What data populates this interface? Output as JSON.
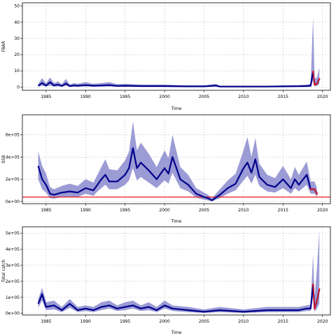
{
  "chart_data": [
    {
      "type": "line",
      "title": "",
      "xlabel": "Time",
      "ylabel": "FBAR",
      "xlim": [
        1982,
        2021
      ],
      "ylim": [
        -2,
        52
      ],
      "grid": true,
      "x_ticks": [
        1985,
        1990,
        1995,
        2000,
        2005,
        2010,
        2015,
        2020
      ],
      "y_ticks": [
        {
          "v": 0,
          "label": "0"
        },
        {
          "v": 10,
          "label": "10"
        },
        {
          "v": 20,
          "label": "20"
        },
        {
          "v": 30,
          "label": "30"
        },
        {
          "v": 40,
          "label": "40"
        },
        {
          "v": 50,
          "label": "50"
        }
      ],
      "colors": {
        "line": "#00008b",
        "band": "#9b9bd6",
        "highlight": "#e31a1c"
      },
      "x": [
        1984.0,
        1984.5,
        1985.0,
        1985.5,
        1986.0,
        1986.5,
        1987.0,
        1987.5,
        1988.0,
        1988.5,
        1989.0,
        1990.0,
        1991.0,
        1992.0,
        1993.0,
        1994.0,
        1995.0,
        1997.0,
        2000.0,
        2003.0,
        2005.0,
        2006.5,
        2007.0,
        2010.0,
        2013.0,
        2015.0,
        2017.0,
        2018.0,
        2018.5,
        2018.8,
        2019.0,
        2019.3,
        2019.6
      ],
      "series": [
        {
          "role": "median",
          "values": [
            0.8,
            2.5,
            0.9,
            3.0,
            1.0,
            1.5,
            0.7,
            2.2,
            0.6,
            1.0,
            0.8,
            1.2,
            0.8,
            1.0,
            1.2,
            0.7,
            0.8,
            0.6,
            0.6,
            0.4,
            0.4,
            0.9,
            0.3,
            0.3,
            0.3,
            0.4,
            0.5,
            0.6,
            0.8,
            9.5,
            1.5,
            2.0,
            5.0
          ]
        },
        {
          "role": "lower",
          "values": [
            0.2,
            0.8,
            0.3,
            0.9,
            0.3,
            0.5,
            0.2,
            0.7,
            0.2,
            0.3,
            0.2,
            0.4,
            0.2,
            0.3,
            0.4,
            0.2,
            0.2,
            0.2,
            0.2,
            0.1,
            0.1,
            0.3,
            0.1,
            0.1,
            0.1,
            0.1,
            0.2,
            0.2,
            0.3,
            4.0,
            0.5,
            0.7,
            2.0
          ]
        },
        {
          "role": "upper",
          "values": [
            2.0,
            5.5,
            2.2,
            6.0,
            2.5,
            3.5,
            1.8,
            5.0,
            1.5,
            2.5,
            2.0,
            3.0,
            2.0,
            2.5,
            3.0,
            1.8,
            2.0,
            1.5,
            1.5,
            1.0,
            1.0,
            2.0,
            0.8,
            0.8,
            0.8,
            1.0,
            1.2,
            1.5,
            2.0,
            43.0,
            5.0,
            6.0,
            12.0
          ]
        },
        {
          "role": "forecast",
          "x": [
            2018.8,
            2019.0,
            2019.3,
            2019.6
          ],
          "values": [
            9.5,
            1.5,
            2.0,
            5.0
          ]
        }
      ]
    },
    {
      "type": "line",
      "title": "",
      "xlabel": "Time",
      "ylabel": "SSB",
      "xlim": [
        1982,
        2021
      ],
      "ylim": [
        -20000,
        780000
      ],
      "grid": true,
      "reference_line": 40000,
      "x_ticks": [
        1985,
        1990,
        1995,
        2000,
        2005,
        2010,
        2015,
        2020
      ],
      "y_ticks": [
        {
          "v": 0,
          "label": "0e+00"
        },
        {
          "v": 200000,
          "label": "2e+05"
        },
        {
          "v": 400000,
          "label": "4e+05"
        },
        {
          "v": 600000,
          "label": "6e+05"
        }
      ],
      "colors": {
        "line": "#00008b",
        "band": "#9b9bd6",
        "reference": "#e31a1c"
      },
      "x": [
        1984.0,
        1984.5,
        1985.0,
        1985.5,
        1986.0,
        1987.0,
        1988.0,
        1989.0,
        1990.0,
        1991.0,
        1991.5,
        1992.0,
        1992.5,
        1993.0,
        1994.0,
        1995.0,
        1995.5,
        1996.0,
        1996.5,
        1997.0,
        1998.0,
        1999.0,
        2000.0,
        2000.5,
        2001.0,
        2002.0,
        2003.0,
        2004.0,
        2005.0,
        2005.5,
        2006.0,
        2007.0,
        2008.0,
        2009.0,
        2010.0,
        2010.5,
        2011.0,
        2011.5,
        2012.0,
        2013.0,
        2014.0,
        2015.0,
        2016.0,
        2016.5,
        2017.0,
        2018.0,
        2018.5,
        2019.0,
        2019.3
      ],
      "series": [
        {
          "role": "median",
          "values": [
            320000,
            200000,
            150000,
            70000,
            60000,
            80000,
            90000,
            80000,
            120000,
            100000,
            150000,
            200000,
            240000,
            180000,
            180000,
            240000,
            300000,
            480000,
            300000,
            350000,
            280000,
            200000,
            300000,
            250000,
            400000,
            200000,
            150000,
            70000,
            40000,
            30000,
            10000,
            60000,
            120000,
            160000,
            300000,
            350000,
            260000,
            380000,
            220000,
            150000,
            130000,
            200000,
            120000,
            200000,
            150000,
            240000,
            110000,
            110000,
            70000
          ]
        },
        {
          "role": "lower",
          "values": [
            200000,
            110000,
            80000,
            30000,
            25000,
            40000,
            45000,
            40000,
            70000,
            50000,
            90000,
            120000,
            150000,
            110000,
            110000,
            150000,
            190000,
            300000,
            190000,
            220000,
            170000,
            120000,
            190000,
            160000,
            260000,
            120000,
            90000,
            35000,
            15000,
            10000,
            2000,
            30000,
            70000,
            100000,
            190000,
            230000,
            160000,
            240000,
            140000,
            90000,
            80000,
            120000,
            70000,
            120000,
            90000,
            150000,
            70000,
            70000,
            40000
          ]
        },
        {
          "role": "upper",
          "values": [
            450000,
            320000,
            250000,
            130000,
            110000,
            140000,
            160000,
            140000,
            200000,
            170000,
            240000,
            310000,
            380000,
            290000,
            280000,
            370000,
            450000,
            720000,
            460000,
            530000,
            430000,
            310000,
            460000,
            390000,
            600000,
            310000,
            240000,
            120000,
            80000,
            60000,
            30000,
            110000,
            190000,
            250000,
            460000,
            580000,
            400000,
            570000,
            340000,
            240000,
            210000,
            320000,
            200000,
            310000,
            240000,
            360000,
            180000,
            180000,
            120000
          ]
        },
        {
          "role": "forecast",
          "x": [
            2018.5,
            2019.0,
            2019.3
          ],
          "values": [
            110000,
            110000,
            70000
          ]
        }
      ]
    },
    {
      "type": "line",
      "title": "",
      "xlabel": "Time",
      "ylabel": "Total catch",
      "xlim": [
        1982,
        2021
      ],
      "ylim": [
        -10000,
        540000
      ],
      "grid": true,
      "x_ticks": [
        1985,
        1990,
        1995,
        2000,
        2005,
        2010,
        2015,
        2020
      ],
      "y_ticks": [
        {
          "v": 0,
          "label": "0e+00"
        },
        {
          "v": 100000,
          "label": "1e+05"
        },
        {
          "v": 200000,
          "label": "2e+05"
        },
        {
          "v": 300000,
          "label": "3e+05"
        },
        {
          "v": 400000,
          "label": "4e+05"
        },
        {
          "v": 500000,
          "label": "5e+05"
        }
      ],
      "colors": {
        "line": "#00008b",
        "band": "#9b9bd6",
        "highlight": "#e31a1c"
      },
      "x": [
        1984.0,
        1984.5,
        1985.0,
        1986.0,
        1987.0,
        1988.0,
        1989.0,
        1990.0,
        1991.0,
        1992.0,
        1993.0,
        1994.0,
        1995.0,
        1996.0,
        1997.0,
        1998.0,
        1999.0,
        2000.0,
        2001.0,
        2003.0,
        2005.0,
        2007.0,
        2010.0,
        2013.0,
        2015.0,
        2017.0,
        2018.0,
        2018.5,
        2018.8,
        2019.0,
        2019.3,
        2019.6
      ],
      "series": [
        {
          "role": "median",
          "values": [
            60000,
            120000,
            40000,
            50000,
            20000,
            60000,
            20000,
            30000,
            20000,
            40000,
            50000,
            30000,
            40000,
            50000,
            30000,
            40000,
            20000,
            50000,
            30000,
            20000,
            10000,
            20000,
            10000,
            20000,
            20000,
            20000,
            30000,
            30000,
            180000,
            30000,
            80000,
            150000
          ]
        },
        {
          "role": "lower",
          "values": [
            35000,
            80000,
            20000,
            25000,
            8000,
            35000,
            8000,
            15000,
            8000,
            20000,
            30000,
            15000,
            20000,
            30000,
            15000,
            20000,
            8000,
            30000,
            15000,
            8000,
            3000,
            8000,
            3000,
            8000,
            8000,
            8000,
            15000,
            15000,
            100000,
            10000,
            30000,
            60000
          ]
        },
        {
          "role": "upper",
          "values": [
            90000,
            160000,
            70000,
            80000,
            40000,
            90000,
            40000,
            50000,
            40000,
            70000,
            80000,
            50000,
            70000,
            80000,
            50000,
            70000,
            40000,
            80000,
            50000,
            40000,
            25000,
            40000,
            25000,
            40000,
            40000,
            40000,
            50000,
            55000,
            370000,
            100000,
            280000,
            520000
          ]
        },
        {
          "role": "forecast",
          "x": [
            2018.8,
            2019.0,
            2019.3,
            2019.6
          ],
          "values": [
            180000,
            30000,
            80000,
            150000
          ]
        }
      ]
    }
  ]
}
